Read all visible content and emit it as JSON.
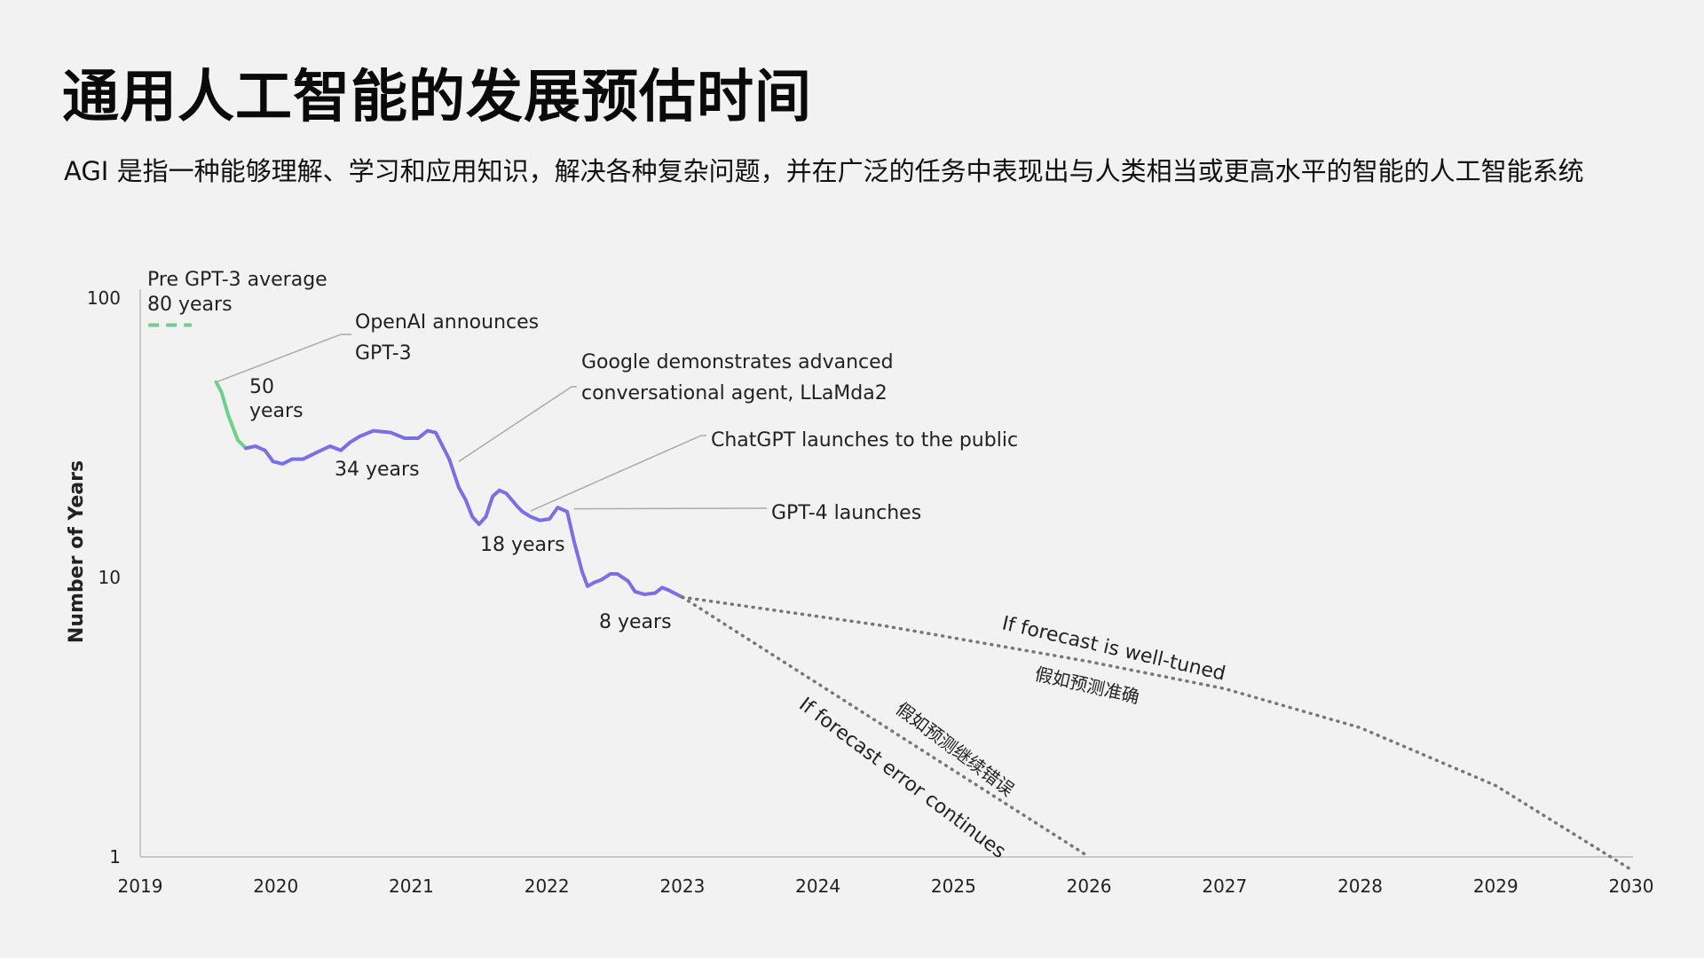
{
  "page": {
    "title": "通用人工智能的发展预估时间",
    "subtitle": "AGI 是指一种能够理解、学习和应用知识，解决各种复杂问题，并在广泛的任务中表现出与人类相当或更高水平的智能的人工智能系统"
  },
  "chart_data": {
    "type": "line",
    "ylabel": "Number of Years",
    "xlabel": "",
    "yscale": "log",
    "xlim": [
      2019,
      2030
    ],
    "ylim": [
      1,
      100
    ],
    "x_ticks": [
      "2019",
      "2020",
      "2021",
      "2022",
      "2023",
      "2024",
      "2025",
      "2026",
      "2027",
      "2028",
      "2029",
      "2030"
    ],
    "y_ticks": [
      "1",
      "10",
      "100"
    ],
    "grid": false,
    "colors": {
      "pre_gpt3": "#6fd08c",
      "history": "#7b6fe6",
      "forecast": "#777777",
      "leader": "#aaaaaa"
    },
    "series": [
      {
        "style": "dashed",
        "x": [
          2019.06,
          2019.38
        ],
        "y": [
          80,
          80
        ]
      },
      {
        "x": [
          2019.56,
          2019.6,
          2019.65,
          2019.72,
          2019.78
        ],
        "y": [
          50,
          46,
          38,
          31,
          29
        ]
      },
      {
        "x": [
          2019.78,
          2019.85,
          2019.92,
          2019.98,
          2020.05,
          2020.12,
          2020.2,
          2020.3,
          2020.4,
          2020.48,
          2020.55,
          2020.62,
          2020.72,
          2020.85,
          2020.95,
          2021.05,
          2021.12,
          2021.18,
          2021.28,
          2021.35,
          2021.4,
          2021.45,
          2021.5,
          2021.55,
          2021.6,
          2021.65,
          2021.7,
          2021.78,
          2021.82,
          2021.88,
          2021.95,
          2022.02,
          2022.08,
          2022.15,
          2022.2,
          2022.26,
          2022.3,
          2022.35,
          2022.4,
          2022.47,
          2022.52,
          2022.6,
          2022.65,
          2022.72,
          2022.8,
          2022.85,
          2022.9,
          2023.0
        ],
        "y": [
          29,
          29.5,
          28.5,
          26,
          25.5,
          26.5,
          26.5,
          28,
          29.5,
          28.5,
          30.5,
          32,
          33.5,
          33,
          31.5,
          31.5,
          33.5,
          33,
          26.5,
          21,
          19,
          16.5,
          15.5,
          16.5,
          19.5,
          20.5,
          20,
          18,
          17.2,
          16.5,
          16,
          16.2,
          17.8,
          17.2,
          13.5,
          10.5,
          9.3,
          9.6,
          9.8,
          10.3,
          10.3,
          9.7,
          8.9,
          8.7,
          8.8,
          9.2,
          9.0,
          8.5
        ]
      },
      {
        "style": "dotted",
        "x": [
          2023.0,
          2024.5,
          2026.0,
          2027.0,
          2028.0,
          2029.0,
          2030.0
        ],
        "y": [
          8.5,
          6.7,
          5.0,
          4.0,
          2.9,
          1.8,
          0.9
        ]
      },
      {
        "style": "dotted",
        "x": [
          2023.0,
          2026.0
        ],
        "y": [
          8.5,
          1.0
        ]
      }
    ],
    "annotations": {
      "pre_gpt3": {
        "line1": "Pre GPT-3 average",
        "line2": "80 years"
      },
      "openai": {
        "line1": "OpenAI announces",
        "line2": "GPT-3"
      },
      "fifty": {
        "line1": "50",
        "line2": "years"
      },
      "google": {
        "line1": "Google demonstrates advanced",
        "line2": "conversational agent, LLaMda2"
      },
      "chatgpt": "ChatGPT launches to the public",
      "gpt4": "GPT-4 launches",
      "y34": "34 years",
      "y18": "18 years",
      "y8": "8 years",
      "well_tuned": "If forecast is well-tuned",
      "well_tuned_cn": "假如预测准确",
      "error": "If forecast error continues",
      "error_cn": "假如预测继续错误"
    }
  }
}
